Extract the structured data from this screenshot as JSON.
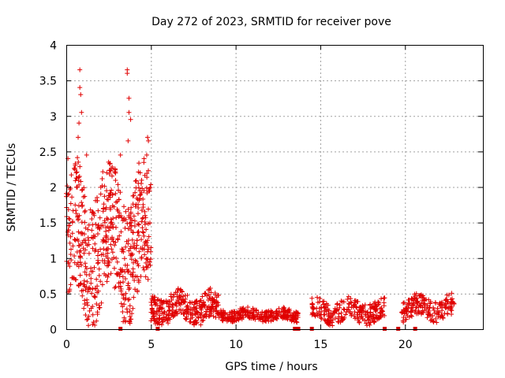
{
  "chart_data": {
    "type": "scatter",
    "title": "Day 272 of 2023, SRMTID for receiver pove",
    "xlabel": "GPS time / hours",
    "ylabel": "SRMTID / TECUs",
    "xlim": [
      0,
      24.6
    ],
    "ylim": [
      0,
      4
    ],
    "xticks": [
      0,
      5,
      10,
      15,
      20
    ],
    "xtick_labels": [
      "0",
      "5",
      "10",
      "15",
      "20"
    ],
    "yticks": [
      0,
      0.5,
      1,
      1.5,
      2,
      2.5,
      3,
      3.5,
      4
    ],
    "ytick_labels": [
      "0",
      "0.5",
      "1",
      "1.5",
      "2",
      "2.5",
      "3",
      "3.5",
      "4"
    ],
    "grid": true,
    "series_color": "#e00000",
    "marker": "plus",
    "segments": [
      {
        "x_start": 0.0,
        "x_end": 5.0,
        "level": 1.2,
        "spread": 0.9,
        "density": 6
      },
      {
        "x_start": 5.0,
        "x_end": 9.0,
        "level": 0.3,
        "spread": 0.2,
        "density": 4
      },
      {
        "x_start": 9.0,
        "x_end": 13.7,
        "level": 0.2,
        "spread": 0.08,
        "density": 3
      },
      {
        "x_start": 14.5,
        "x_end": 18.8,
        "level": 0.25,
        "spread": 0.15,
        "density": 3
      },
      {
        "x_start": 19.8,
        "x_end": 22.9,
        "level": 0.3,
        "spread": 0.15,
        "density": 3
      }
    ],
    "highlights": [
      {
        "x": 0.8,
        "y": 3.65
      },
      {
        "x": 0.8,
        "y": 3.4
      },
      {
        "x": 0.85,
        "y": 3.3
      },
      {
        "x": 0.9,
        "y": 3.05
      },
      {
        "x": 0.75,
        "y": 2.9
      },
      {
        "x": 0.7,
        "y": 2.7
      },
      {
        "x": 3.6,
        "y": 3.65
      },
      {
        "x": 3.6,
        "y": 3.6
      },
      {
        "x": 3.7,
        "y": 3.25
      },
      {
        "x": 3.7,
        "y": 3.05
      },
      {
        "x": 3.8,
        "y": 2.95
      },
      {
        "x": 3.65,
        "y": 2.65
      },
      {
        "x": 4.8,
        "y": 2.7
      },
      {
        "x": 4.85,
        "y": 2.65
      },
      {
        "x": 4.75,
        "y": 2.45
      },
      {
        "x": 0.1,
        "y": 2.4
      },
      {
        "x": 1.2,
        "y": 2.45
      },
      {
        "x": 2.5,
        "y": 2.35
      },
      {
        "x": 3.2,
        "y": 2.45
      }
    ],
    "gap_markers": [
      3.2,
      5.4,
      13.5,
      13.7,
      14.5,
      18.8,
      19.6,
      20.6
    ]
  }
}
